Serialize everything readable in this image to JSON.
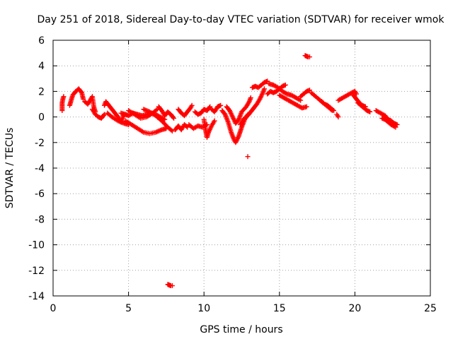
{
  "chart_data": {
    "type": "scatter",
    "title": "Day 251 of 2018, Sidereal Day-to-day VTEC variation (SDTVAR) for receiver wmok",
    "xlabel": "GPS time / hours",
    "ylabel": "SDTVAR / TECUs",
    "xlim": [
      0,
      25
    ],
    "ylim": [
      -14,
      6
    ],
    "xticks": [
      0,
      5,
      10,
      15,
      20,
      25
    ],
    "yticks": [
      -14,
      -12,
      -10,
      -8,
      -6,
      -4,
      -2,
      0,
      2,
      4,
      6
    ],
    "grid": true,
    "marker": "+",
    "color": "#ff0000",
    "segments": [
      [
        [
          0.6,
          0.5
        ],
        [
          0.6,
          0.8
        ],
        [
          0.6,
          1.1
        ],
        [
          0.65,
          1.4
        ],
        [
          0.7,
          1.6
        ]
      ],
      [
        [
          1.1,
          0.9
        ],
        [
          1.2,
          1.3
        ],
        [
          1.3,
          1.7
        ],
        [
          1.5,
          2.0
        ],
        [
          1.7,
          2.2
        ],
        [
          1.9,
          1.9
        ],
        [
          2.0,
          1.4
        ]
      ],
      [
        [
          2.1,
          1.2
        ],
        [
          2.3,
          1.0
        ],
        [
          2.5,
          1.4
        ],
        [
          2.6,
          1.6
        ],
        [
          2.7,
          0.8
        ],
        [
          2.8,
          0.4
        ]
      ],
      [
        [
          2.6,
          0.6
        ],
        [
          2.8,
          0.2
        ],
        [
          3.0,
          0.0
        ],
        [
          3.2,
          -0.1
        ],
        [
          3.4,
          0.2
        ]
      ],
      [
        [
          3.4,
          0.9
        ],
        [
          3.5,
          1.2
        ],
        [
          3.7,
          0.9
        ],
        [
          3.9,
          0.6
        ],
        [
          4.1,
          0.3
        ],
        [
          4.3,
          0.0
        ],
        [
          4.5,
          -0.4
        ],
        [
          4.7,
          0.2
        ]
      ],
      [
        [
          3.6,
          0.3
        ],
        [
          3.9,
          0.0
        ],
        [
          4.3,
          -0.3
        ],
        [
          4.7,
          -0.5
        ],
        [
          5.0,
          -0.6
        ]
      ],
      [
        [
          4.5,
          0.3
        ],
        [
          4.8,
          0.2
        ],
        [
          5.0,
          0.1
        ],
        [
          5.3,
          0.3
        ],
        [
          5.6,
          0.2
        ],
        [
          5.9,
          0.1
        ],
        [
          6.2,
          0.2
        ],
        [
          6.5,
          0.3
        ],
        [
          6.8,
          0.2
        ],
        [
          7.1,
          0.0
        ],
        [
          7.4,
          -0.2
        ]
      ],
      [
        [
          4.8,
          -0.3
        ],
        [
          5.2,
          -0.6
        ],
        [
          5.6,
          -0.9
        ],
        [
          6.0,
          -1.2
        ],
        [
          6.4,
          -1.3
        ],
        [
          6.8,
          -1.2
        ],
        [
          7.2,
          -1.0
        ],
        [
          7.5,
          -0.9
        ]
      ],
      [
        [
          5.0,
          0.5
        ],
        [
          5.4,
          0.2
        ],
        [
          5.8,
          -0.1
        ],
        [
          6.2,
          0.0
        ],
        [
          6.6,
          0.3
        ],
        [
          6.9,
          0.6
        ]
      ],
      [
        [
          6.0,
          0.6
        ],
        [
          6.4,
          0.4
        ],
        [
          6.8,
          0.1
        ],
        [
          7.2,
          -0.3
        ],
        [
          7.6,
          -0.8
        ],
        [
          7.9,
          -1.1
        ]
      ],
      [
        [
          7.0,
          0.8
        ],
        [
          7.2,
          0.5
        ],
        [
          7.4,
          0.1
        ],
        [
          7.6,
          0.4
        ],
        [
          7.8,
          0.2
        ],
        [
          8.0,
          -0.1
        ]
      ],
      [
        [
          8.1,
          -1.0
        ],
        [
          8.3,
          -0.7
        ],
        [
          8.5,
          -1.0
        ],
        [
          8.7,
          -0.6
        ],
        [
          8.9,
          -0.8
        ]
      ],
      [
        [
          8.3,
          0.6
        ],
        [
          8.5,
          0.3
        ],
        [
          8.7,
          0.1
        ],
        [
          8.9,
          0.4
        ],
        [
          9.1,
          0.7
        ],
        [
          9.2,
          0.9
        ]
      ],
      [
        [
          9.0,
          -0.6
        ],
        [
          9.3,
          -0.9
        ],
        [
          9.6,
          -0.7
        ],
        [
          9.9,
          -0.8
        ],
        [
          10.2,
          -0.6
        ]
      ],
      [
        [
          9.4,
          0.4
        ],
        [
          9.6,
          0.2
        ],
        [
          9.8,
          0.3
        ],
        [
          10.0,
          0.6
        ],
        [
          10.2,
          0.5
        ],
        [
          10.4,
          0.8
        ]
      ],
      [
        [
          10.0,
          -0.2
        ],
        [
          10.1,
          -1.0
        ],
        [
          10.2,
          -1.6
        ],
        [
          10.3,
          -1.2
        ],
        [
          10.5,
          -0.7
        ],
        [
          10.7,
          -0.3
        ]
      ],
      [
        [
          10.5,
          0.6
        ],
        [
          10.7,
          0.4
        ],
        [
          10.9,
          0.8
        ],
        [
          11.1,
          0.9
        ]
      ],
      [
        [
          11.2,
          0.5
        ],
        [
          11.4,
          0.2
        ],
        [
          11.6,
          -0.4
        ],
        [
          11.8,
          -1.2
        ],
        [
          12.0,
          -1.8
        ],
        [
          12.1,
          -2.0
        ],
        [
          12.3,
          -1.5
        ],
        [
          12.5,
          -0.8
        ],
        [
          12.7,
          -0.2
        ],
        [
          12.9,
          0.2
        ]
      ],
      [
        [
          11.5,
          0.8
        ],
        [
          11.7,
          0.5
        ],
        [
          11.9,
          0.0
        ],
        [
          12.1,
          -0.5
        ],
        [
          12.3,
          -0.2
        ],
        [
          12.5,
          0.4
        ],
        [
          12.8,
          0.8
        ],
        [
          13.0,
          1.2
        ],
        [
          13.1,
          1.5
        ]
      ],
      [
        [
          12.4,
          -0.6
        ],
        [
          12.6,
          -0.2
        ],
        [
          12.9,
          0.1
        ],
        [
          13.1,
          0.4
        ],
        [
          13.3,
          0.7
        ],
        [
          13.5,
          1.0
        ],
        [
          13.7,
          1.4
        ],
        [
          13.9,
          1.9
        ],
        [
          14.0,
          2.2
        ]
      ],
      [
        [
          13.2,
          2.3
        ],
        [
          13.4,
          2.4
        ],
        [
          13.6,
          2.3
        ],
        [
          13.8,
          2.5
        ],
        [
          14.0,
          2.7
        ],
        [
          14.2,
          2.8
        ]
      ],
      [
        [
          14.2,
          1.8
        ],
        [
          14.4,
          2.0
        ],
        [
          14.6,
          1.9
        ],
        [
          14.8,
          2.0
        ],
        [
          15.0,
          2.2
        ],
        [
          15.2,
          2.4
        ],
        [
          15.4,
          2.5
        ]
      ],
      [
        [
          14.3,
          2.6
        ],
        [
          14.6,
          2.5
        ],
        [
          14.9,
          2.3
        ],
        [
          15.2,
          2.0
        ],
        [
          15.5,
          1.8
        ],
        [
          15.8,
          1.7
        ],
        [
          16.1,
          1.5
        ],
        [
          16.4,
          1.3
        ]
      ],
      [
        [
          15.0,
          1.7
        ],
        [
          15.3,
          1.5
        ],
        [
          15.6,
          1.3
        ],
        [
          15.9,
          1.1
        ],
        [
          16.2,
          0.9
        ],
        [
          16.5,
          0.7
        ],
        [
          16.8,
          0.8
        ]
      ],
      [
        [
          16.4,
          1.6
        ],
        [
          16.6,
          1.8
        ],
        [
          16.8,
          2.0
        ],
        [
          17.0,
          2.1
        ]
      ],
      [
        [
          16.7,
          4.8
        ],
        [
          16.8,
          4.75
        ],
        [
          16.9,
          4.7
        ],
        [
          17.0,
          4.7
        ]
      ],
      [
        [
          17.1,
          1.9
        ],
        [
          17.4,
          1.6
        ],
        [
          17.7,
          1.3
        ],
        [
          18.0,
          1.0
        ],
        [
          18.3,
          0.7
        ],
        [
          18.5,
          0.5
        ]
      ],
      [
        [
          17.8,
          1.2
        ],
        [
          18.0,
          1.0
        ],
        [
          18.2,
          0.9
        ],
        [
          18.4,
          0.7
        ],
        [
          18.6,
          0.5
        ]
      ],
      [
        [
          18.8,
          0.2
        ],
        [
          18.9,
          0.0
        ]
      ],
      [
        [
          18.9,
          1.3
        ],
        [
          19.2,
          1.5
        ],
        [
          19.5,
          1.7
        ],
        [
          19.8,
          1.9
        ],
        [
          20.0,
          2.0
        ],
        [
          20.1,
          1.8
        ]
      ],
      [
        [
          19.9,
          1.7
        ],
        [
          20.1,
          1.4
        ],
        [
          20.3,
          1.1
        ],
        [
          20.5,
          0.9
        ],
        [
          20.7,
          0.8
        ]
      ],
      [
        [
          20.2,
          1.1
        ],
        [
          20.4,
          0.9
        ],
        [
          20.6,
          0.7
        ],
        [
          20.8,
          0.5
        ],
        [
          21.0,
          0.4
        ]
      ],
      [
        [
          21.4,
          0.5
        ],
        [
          21.7,
          0.3
        ],
        [
          22.0,
          0.1
        ],
        [
          22.2,
          -0.2
        ],
        [
          22.4,
          -0.3
        ],
        [
          22.6,
          -0.5
        ],
        [
          22.8,
          -0.6
        ]
      ],
      [
        [
          21.8,
          -0.1
        ],
        [
          22.0,
          -0.2
        ],
        [
          22.2,
          -0.4
        ],
        [
          22.4,
          -0.6
        ],
        [
          22.7,
          -0.8
        ]
      ],
      [
        [
          7.6,
          -13.1
        ],
        [
          7.7,
          -13.15
        ],
        [
          7.8,
          -13.2
        ],
        [
          7.9,
          -13.2
        ]
      ],
      [
        [
          12.9,
          -3.1
        ]
      ]
    ]
  }
}
